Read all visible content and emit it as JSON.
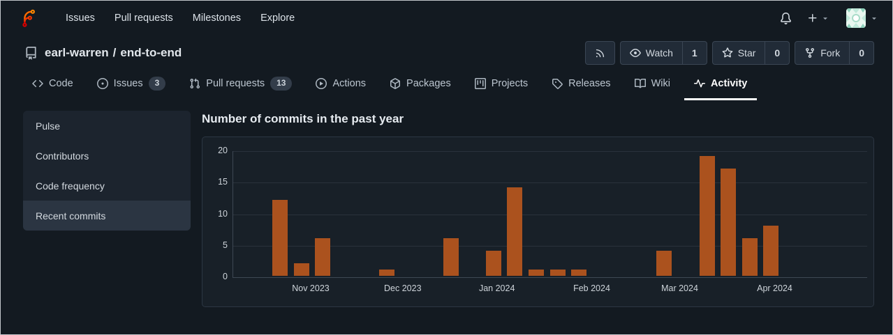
{
  "topnav": {
    "links": [
      {
        "label": "Issues"
      },
      {
        "label": "Pull requests"
      },
      {
        "label": "Milestones"
      },
      {
        "label": "Explore"
      }
    ],
    "icons": [
      "bell-icon",
      "plus-icon",
      "triangle-down-icon",
      "avatar"
    ]
  },
  "repo_header": {
    "owner": "earl-warren",
    "separator": "/",
    "name": "end-to-end",
    "actions": {
      "rss": {
        "icon": "rss-icon"
      },
      "watch": {
        "label": "Watch",
        "count": "1"
      },
      "star": {
        "label": "Star",
        "count": "0"
      },
      "fork": {
        "label": "Fork",
        "count": "0"
      }
    }
  },
  "tabs": [
    {
      "label": "Code",
      "icon": "code"
    },
    {
      "label": "Issues",
      "icon": "issue-opened",
      "badge": "3"
    },
    {
      "label": "Pull requests",
      "icon": "git-pull-request",
      "badge": "13"
    },
    {
      "label": "Actions",
      "icon": "play"
    },
    {
      "label": "Packages",
      "icon": "package"
    },
    {
      "label": "Projects",
      "icon": "project"
    },
    {
      "label": "Releases",
      "icon": "tag"
    },
    {
      "label": "Wiki",
      "icon": "book"
    },
    {
      "label": "Activity",
      "icon": "pulse",
      "active": true
    }
  ],
  "sidebar": {
    "items": [
      {
        "label": "Pulse"
      },
      {
        "label": "Contributors"
      },
      {
        "label": "Code frequency"
      },
      {
        "label": "Recent commits",
        "active": true
      }
    ]
  },
  "main": {
    "title": "Number of commits in the past year"
  },
  "chart_data": {
    "type": "bar",
    "title": "Number of commits in the past year",
    "x_unit": "week",
    "bars": [
      {
        "week": 0,
        "count": 12
      },
      {
        "week": 1,
        "count": 2
      },
      {
        "week": 2,
        "count": 6
      },
      {
        "week": 5,
        "count": 1
      },
      {
        "week": 8,
        "count": 6
      },
      {
        "week": 10,
        "count": 4
      },
      {
        "week": 11,
        "count": 14
      },
      {
        "week": 12,
        "count": 1
      },
      {
        "week": 13,
        "count": 1
      },
      {
        "week": 14,
        "count": 1
      },
      {
        "week": 18,
        "count": 4
      },
      {
        "week": 20,
        "count": 19
      },
      {
        "week": 21,
        "count": 17
      },
      {
        "week": 22,
        "count": 6
      },
      {
        "week": 23,
        "count": 8
      }
    ],
    "x_month_labels": [
      {
        "label": "Nov 2023",
        "week": 1.44
      },
      {
        "label": "Dec 2023",
        "week": 5.75
      },
      {
        "label": "Jan 2024",
        "week": 10.16
      },
      {
        "label": "Feb 2024",
        "week": 14.6
      },
      {
        "label": "Mar 2024",
        "week": 18.72
      },
      {
        "label": "Apr 2024",
        "week": 23.17
      }
    ],
    "yticks": [
      0,
      5,
      10,
      15,
      20
    ],
    "ylim": [
      0,
      20
    ],
    "grid": true,
    "legend": "none",
    "bar_color": "#ab521e"
  },
  "colors": {
    "page_bg": "#131a21",
    "panel_bg": "#182028",
    "sidebar_bg": "#1c242e",
    "sidebar_active_bg": "#2b3542",
    "button_bg": "#212b37",
    "border": "#2c3643",
    "bar": "#ab521e",
    "active_tab_underline": "#ffffff"
  }
}
